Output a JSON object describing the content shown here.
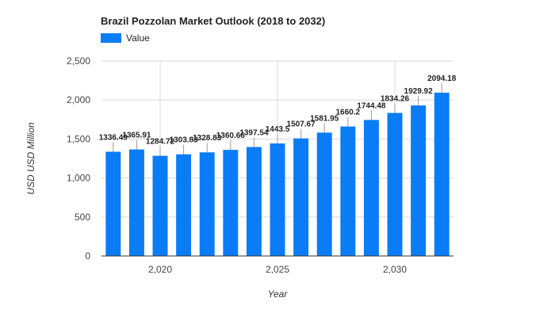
{
  "chart_data": {
    "type": "bar",
    "title": "Brazil Pozzolan Market Outlook (2018 to 2032)",
    "xlabel": "Year",
    "ylabel": "USD USD Million",
    "x": [
      2018,
      2019,
      2020,
      2021,
      2022,
      2023,
      2024,
      2025,
      2026,
      2027,
      2028,
      2029,
      2030,
      2031,
      2032
    ],
    "series": [
      {
        "name": "Value",
        "color": "#0a7cf5",
        "values": [
          1336.49,
          1365.91,
          1284.72,
          1303.83,
          1328.83,
          1360.66,
          1397.54,
          1443.5,
          1507.67,
          1581.95,
          1660.2,
          1744.48,
          1834.26,
          1929.92,
          2094.18
        ],
        "labels": [
          "1336.49",
          "1365.91",
          "1284.72",
          "1303.83",
          "1328.83",
          "1360.66",
          "1397.54",
          "1443.5",
          "1507.67",
          "1581.95",
          "1660.2",
          "1744.48",
          "1834.26",
          "1929.92",
          "2094.18"
        ]
      }
    ],
    "ylim": [
      0,
      2500
    ],
    "y_ticks": [
      0,
      500,
      1000,
      1500,
      2000,
      2500
    ],
    "y_tick_labels": [
      "0",
      "500",
      "1,000",
      "1,500",
      "2,000",
      "2,500"
    ],
    "x_ticks": [
      2020,
      2025,
      2030
    ],
    "x_tick_labels": [
      "2,020",
      "2,025",
      "2,030"
    ],
    "grid": true,
    "legend_position": "top-left"
  }
}
